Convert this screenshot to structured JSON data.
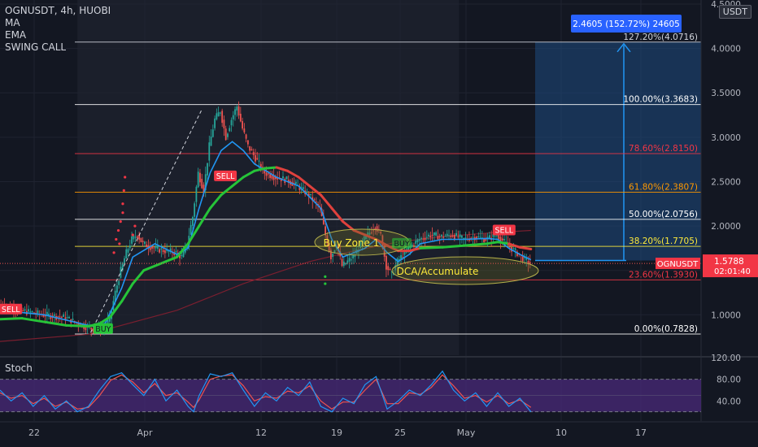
{
  "header": {
    "symbol_line": "OGNUSDT, 4h, HUOBI",
    "indicators": [
      "MA",
      "EMA",
      "SWING CALL"
    ]
  },
  "currency_badge": "USDT",
  "stoch_label": "Stoch",
  "colors": {
    "background": "#131722",
    "up": "#26a69a",
    "down": "#ef5350",
    "ma_line": "#2196f3",
    "ema_green": "#26c439",
    "ema_red": "#e0413d",
    "stoch_k": "#2196f3",
    "stoch_d": "#ef5350",
    "stoch_band": "#4a2a7a",
    "projection": "#1e4a80",
    "projection_line": "#2196f3"
  },
  "chart_data": {
    "type": "candlestick",
    "symbol": "OGNUSDT",
    "interval": "4h",
    "exchange": "HUOBI",
    "y_axis": {
      "range": [
        0.6,
        4.5
      ],
      "ticks": [
        "4.5000",
        "4.0000",
        "3.5000",
        "3.0000",
        "2.5000",
        "2.0000",
        "1.5000",
        "1.0000"
      ]
    },
    "x_axis": {
      "ticks": [
        "22",
        "Apr",
        "12",
        "19",
        "25",
        "May",
        "10",
        "17"
      ]
    },
    "last_price": {
      "label": "OGNUSDT",
      "value": "1.5788",
      "countdown": "02:01:40",
      "numeric": 1.5788
    },
    "fibonacci": [
      {
        "label": "127.20%(4.0716)",
        "value": 4.0716,
        "color": "#d1d4dc"
      },
      {
        "label": "100.00%(3.3683)",
        "value": 3.3683,
        "color": "#ffffff"
      },
      {
        "label": "78.60%(2.8150)",
        "value": 2.815,
        "color": "#f23645"
      },
      {
        "label": "61.80%(2.3807)",
        "value": 2.3807,
        "color": "#ff9800"
      },
      {
        "label": "50.00%(2.0756)",
        "value": 2.0756,
        "color": "#ffffff"
      },
      {
        "label": "38.20%(1.7705)",
        "value": 1.7705,
        "color": "#ffeb3b"
      },
      {
        "label": "23.60%(1.3930)",
        "value": 1.393,
        "color": "#f23645"
      },
      {
        "label": "0.00%(0.7828)",
        "value": 0.7828,
        "color": "#ffffff"
      }
    ],
    "projection": {
      "label": "2.4605 (152.72%) 24605",
      "from": 1.6111,
      "to": 4.0716
    },
    "signals": [
      {
        "type": "SELL",
        "x_day": 0.9,
        "price": 1.06
      },
      {
        "type": "BUY",
        "x_day": 9.4,
        "price": 0.84
      },
      {
        "type": "SELL",
        "x_day": 20.3,
        "price": 2.56
      },
      {
        "type": "BUY",
        "x_day": 36.4,
        "price": 1.8
      },
      {
        "type": "SELL",
        "x_day": 45.5,
        "price": 1.95
      }
    ],
    "annotations": [
      {
        "text": "Buy Zone 1",
        "price": 1.8,
        "x_day": 29.6
      },
      {
        "text": "DCA/Accumulate",
        "price": 1.5,
        "x_day": 39.6
      }
    ],
    "ohlc_path": [
      [
        0,
        1.12
      ],
      [
        2,
        1.05
      ],
      [
        4,
        1.0
      ],
      [
        6,
        0.97
      ],
      [
        7.5,
        0.88
      ],
      [
        8.5,
        0.84
      ],
      [
        9.4,
        0.85
      ],
      [
        10,
        0.95
      ],
      [
        10.5,
        1.25
      ],
      [
        11,
        1.5
      ],
      [
        11.5,
        1.7
      ],
      [
        12,
        1.85
      ],
      [
        12.5,
        1.9
      ],
      [
        13,
        1.8
      ],
      [
        14,
        1.75
      ],
      [
        15,
        1.72
      ],
      [
        16,
        1.7
      ],
      [
        16.5,
        1.65
      ],
      [
        17,
        1.8
      ],
      [
        17.5,
        2.1
      ],
      [
        18,
        2.6
      ],
      [
        18.5,
        2.4
      ],
      [
        19,
        2.9
      ],
      [
        19.5,
        3.2
      ],
      [
        20,
        3.3
      ],
      [
        20.5,
        3.0
      ],
      [
        21,
        3.2
      ],
      [
        21.5,
        3.35
      ],
      [
        22,
        3.1
      ],
      [
        22.5,
        2.9
      ],
      [
        23,
        2.8
      ],
      [
        24,
        2.6
      ],
      [
        25,
        2.55
      ],
      [
        26,
        2.52
      ],
      [
        27,
        2.45
      ],
      [
        28,
        2.35
      ],
      [
        29,
        2.2
      ],
      [
        29.5,
        1.9
      ],
      [
        30,
        1.65
      ],
      [
        30.5,
        1.8
      ],
      [
        31,
        1.55
      ],
      [
        32,
        1.65
      ],
      [
        33,
        1.85
      ],
      [
        34,
        2.0
      ],
      [
        34.5,
        1.9
      ],
      [
        35,
        1.55
      ],
      [
        35.5,
        1.45
      ],
      [
        36,
        1.6
      ],
      [
        37,
        1.75
      ],
      [
        38,
        1.85
      ],
      [
        39,
        1.9
      ],
      [
        40,
        1.88
      ],
      [
        41,
        1.9
      ],
      [
        42,
        1.85
      ],
      [
        43,
        1.88
      ],
      [
        44,
        1.85
      ],
      [
        45,
        1.9
      ],
      [
        46,
        1.78
      ],
      [
        47,
        1.68
      ],
      [
        47.5,
        1.62
      ],
      [
        48,
        1.58
      ]
    ],
    "ma_line": [
      [
        0,
        1.05
      ],
      [
        4,
        1.0
      ],
      [
        8,
        0.88
      ],
      [
        9.5,
        0.9
      ],
      [
        11,
        1.3
      ],
      [
        12,
        1.65
      ],
      [
        14,
        1.8
      ],
      [
        16,
        1.68
      ],
      [
        17,
        1.75
      ],
      [
        18,
        2.2
      ],
      [
        19,
        2.6
      ],
      [
        20,
        2.85
      ],
      [
        21,
        2.95
      ],
      [
        22,
        2.85
      ],
      [
        23,
        2.7
      ],
      [
        25,
        2.55
      ],
      [
        27,
        2.45
      ],
      [
        29,
        2.2
      ],
      [
        30,
        1.85
      ],
      [
        31,
        1.65
      ],
      [
        33,
        1.75
      ],
      [
        34,
        1.85
      ],
      [
        35,
        1.7
      ],
      [
        36,
        1.6
      ],
      [
        37,
        1.68
      ],
      [
        38,
        1.8
      ],
      [
        40,
        1.85
      ],
      [
        42,
        1.85
      ],
      [
        44,
        1.86
      ],
      [
        45,
        1.85
      ],
      [
        46,
        1.75
      ],
      [
        47,
        1.68
      ],
      [
        48,
        1.62
      ]
    ],
    "ema_line": [
      [
        0,
        0.95
      ],
      [
        2,
        0.96
      ],
      [
        4,
        0.92
      ],
      [
        6,
        0.88
      ],
      [
        8,
        0.87
      ],
      [
        9,
        0.9
      ],
      [
        10,
        0.98
      ],
      [
        11,
        1.15
      ],
      [
        12,
        1.35
      ],
      [
        13,
        1.5
      ],
      [
        15,
        1.6
      ],
      [
        16,
        1.65
      ],
      [
        17,
        1.8
      ],
      [
        18,
        2.0
      ],
      [
        19,
        2.2
      ],
      [
        20,
        2.35
      ],
      [
        21,
        2.45
      ],
      [
        22,
        2.55
      ],
      [
        23,
        2.62
      ],
      [
        24,
        2.65
      ],
      [
        25,
        2.66
      ],
      [
        26,
        2.62
      ],
      [
        27,
        2.55
      ],
      [
        28,
        2.45
      ],
      [
        29,
        2.35
      ],
      [
        30,
        2.2
      ],
      [
        31,
        2.05
      ],
      [
        32,
        1.95
      ],
      [
        33,
        1.9
      ],
      [
        34,
        1.85
      ],
      [
        35,
        1.78
      ],
      [
        36,
        1.72
      ],
      [
        37,
        1.72
      ],
      [
        38,
        1.75
      ],
      [
        40,
        1.76
      ],
      [
        42,
        1.78
      ],
      [
        44,
        1.8
      ],
      [
        45,
        1.82
      ],
      [
        46,
        1.8
      ],
      [
        47,
        1.76
      ],
      [
        48,
        1.74
      ]
    ],
    "ema_colors": [
      [
        0,
        "#26c439"
      ],
      [
        9,
        "#26c439"
      ],
      [
        11,
        "#26c439"
      ],
      [
        24.5,
        "#e0413d"
      ],
      [
        36,
        "#e0413d"
      ],
      [
        37.5,
        "#26c439"
      ],
      [
        45,
        "#26c439"
      ],
      [
        46,
        "#e0413d"
      ]
    ],
    "slow_ma": [
      [
        0,
        0.7
      ],
      [
        8,
        0.78
      ],
      [
        16,
        1.05
      ],
      [
        22,
        1.35
      ],
      [
        28,
        1.6
      ],
      [
        32,
        1.72
      ],
      [
        36,
        1.82
      ],
      [
        40,
        1.88
      ],
      [
        44,
        1.92
      ],
      [
        48,
        1.95
      ]
    ],
    "stochastic": {
      "range": [
        0,
        120
      ],
      "ticks": [
        "120.00",
        "80.00",
        "40.00"
      ],
      "band": [
        20,
        80
      ],
      "k": [
        [
          0,
          60
        ],
        [
          1,
          40
        ],
        [
          2,
          55
        ],
        [
          3,
          30
        ],
        [
          4,
          50
        ],
        [
          5,
          25
        ],
        [
          6,
          40
        ],
        [
          7,
          20
        ],
        [
          8,
          30
        ],
        [
          9,
          60
        ],
        [
          10,
          85
        ],
        [
          11,
          92
        ],
        [
          12,
          70
        ],
        [
          13,
          50
        ],
        [
          14,
          80
        ],
        [
          15,
          40
        ],
        [
          16,
          60
        ],
        [
          17,
          30
        ],
        [
          17.5,
          20
        ],
        [
          18,
          50
        ],
        [
          19,
          90
        ],
        [
          20,
          85
        ],
        [
          21,
          92
        ],
        [
          22,
          60
        ],
        [
          23,
          30
        ],
        [
          24,
          55
        ],
        [
          25,
          40
        ],
        [
          26,
          65
        ],
        [
          27,
          50
        ],
        [
          28,
          75
        ],
        [
          29,
          30
        ],
        [
          30,
          20
        ],
        [
          31,
          45
        ],
        [
          32,
          35
        ],
        [
          33,
          70
        ],
        [
          34,
          85
        ],
        [
          35,
          25
        ],
        [
          36,
          40
        ],
        [
          37,
          60
        ],
        [
          38,
          50
        ],
        [
          39,
          70
        ],
        [
          40,
          95
        ],
        [
          41,
          60
        ],
        [
          42,
          40
        ],
        [
          43,
          55
        ],
        [
          44,
          30
        ],
        [
          45,
          55
        ],
        [
          46,
          30
        ],
        [
          47,
          45
        ],
        [
          48,
          20
        ]
      ],
      "d": [
        [
          0,
          55
        ],
        [
          1,
          45
        ],
        [
          2,
          50
        ],
        [
          3,
          35
        ],
        [
          4,
          45
        ],
        [
          5,
          30
        ],
        [
          6,
          38
        ],
        [
          7,
          25
        ],
        [
          8,
          28
        ],
        [
          9,
          50
        ],
        [
          10,
          78
        ],
        [
          11,
          88
        ],
        [
          12,
          75
        ],
        [
          13,
          55
        ],
        [
          14,
          72
        ],
        [
          15,
          50
        ],
        [
          16,
          55
        ],
        [
          17,
          38
        ],
        [
          17.5,
          28
        ],
        [
          18,
          42
        ],
        [
          19,
          80
        ],
        [
          20,
          86
        ],
        [
          21,
          88
        ],
        [
          22,
          68
        ],
        [
          23,
          40
        ],
        [
          24,
          48
        ],
        [
          25,
          45
        ],
        [
          26,
          58
        ],
        [
          27,
          55
        ],
        [
          28,
          68
        ],
        [
          29,
          40
        ],
        [
          30,
          25
        ],
        [
          31,
          38
        ],
        [
          32,
          38
        ],
        [
          33,
          60
        ],
        [
          34,
          80
        ],
        [
          35,
          35
        ],
        [
          36,
          35
        ],
        [
          37,
          55
        ],
        [
          38,
          52
        ],
        [
          39,
          65
        ],
        [
          40,
          88
        ],
        [
          41,
          68
        ],
        [
          42,
          45
        ],
        [
          43,
          50
        ],
        [
          44,
          38
        ],
        [
          45,
          50
        ],
        [
          46,
          35
        ],
        [
          47,
          42
        ],
        [
          48,
          28
        ]
      ]
    }
  }
}
